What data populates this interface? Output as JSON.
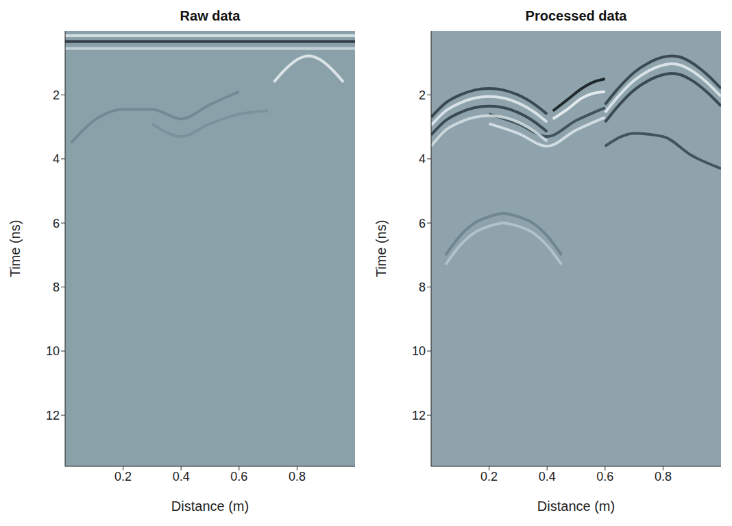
{
  "chart_data": [
    {
      "type": "line",
      "title": "Raw data",
      "x_label": "Distance (m)",
      "y_label": "Time (ns)",
      "xlim": [
        0,
        1
      ],
      "xticks": [
        0.2,
        0.4,
        0.6,
        0.8
      ],
      "ylim": [
        0,
        13.6
      ],
      "yticks": [
        2,
        4,
        6,
        8,
        10,
        12
      ],
      "color": "#8ba1aa",
      "series": [
        {
          "color": "#dfe9ec",
          "x": [
            0,
            1
          ],
          "values": [
            0.15,
            0.15
          ]
        },
        {
          "color": "#c9d8dc",
          "x": [
            0,
            1
          ],
          "values": [
            0.55,
            0.55
          ]
        },
        {
          "color": "#1f2b30",
          "x": [
            0,
            1
          ],
          "values": [
            0.33,
            0.33
          ]
        },
        {
          "color": "#e8f0f2",
          "x": [
            0.72,
            0.76,
            0.8,
            0.84,
            0.88,
            0.92,
            0.96
          ],
          "values": [
            1.6,
            1.2,
            0.9,
            0.78,
            0.9,
            1.2,
            1.6
          ]
        },
        {
          "color": "#6f8691",
          "x": [
            0.02,
            0.1,
            0.2,
            0.3,
            0.4,
            0.5,
            0.6
          ],
          "values": [
            3.5,
            2.8,
            2.45,
            2.45,
            2.75,
            2.3,
            1.9
          ]
        },
        {
          "color": "#75909a",
          "x": [
            0.3,
            0.4,
            0.5,
            0.6,
            0.7
          ],
          "values": [
            2.9,
            3.3,
            2.9,
            2.6,
            2.5
          ]
        }
      ]
    },
    {
      "type": "line",
      "title": "Processed data",
      "x_label": "Distance (m)",
      "y_label": "Time (ns)",
      "xlim": [
        0,
        1
      ],
      "xticks": [
        0.2,
        0.4,
        0.6,
        0.8
      ],
      "ylim": [
        0,
        13.6
      ],
      "yticks": [
        2,
        4,
        6,
        8,
        10,
        12
      ],
      "color": "#8ea3ab",
      "series": [
        {
          "color": "#6a818b",
          "x": [
            0.05,
            0.1,
            0.15,
            0.2,
            0.25,
            0.3,
            0.35,
            0.4,
            0.45
          ],
          "values": [
            7.0,
            6.4,
            6.0,
            5.8,
            5.7,
            5.8,
            6.0,
            6.4,
            7.0
          ]
        },
        {
          "color": "#b7c8cd",
          "x": [
            0.05,
            0.1,
            0.15,
            0.2,
            0.25,
            0.3,
            0.35,
            0.4,
            0.45
          ],
          "values": [
            7.3,
            6.7,
            6.3,
            6.1,
            6.0,
            6.1,
            6.3,
            6.7,
            7.3
          ]
        },
        {
          "color": "#34464d",
          "x": [
            0.6,
            0.7,
            0.8,
            0.9,
            1.0
          ],
          "values": [
            3.6,
            3.2,
            3.3,
            3.9,
            4.3
          ]
        },
        {
          "color": "#34464d",
          "x": [
            0.2,
            0.3,
            0.4,
            0.5,
            0.6
          ],
          "values": [
            2.6,
            2.9,
            3.3,
            2.8,
            2.4
          ]
        },
        {
          "color": "#dde8eb",
          "x": [
            0.2,
            0.3,
            0.4,
            0.5,
            0.6
          ],
          "values": [
            2.9,
            3.2,
            3.6,
            3.1,
            2.7
          ]
        },
        {
          "color": "#2a3b42",
          "x": [
            0.0,
            0.05,
            0.1,
            0.15,
            0.2,
            0.25,
            0.3,
            0.35,
            0.4
          ],
          "values": [
            2.7,
            2.25,
            2.0,
            1.85,
            1.8,
            1.85,
            2.0,
            2.25,
            2.6
          ]
        },
        {
          "color": "#e6eff1",
          "x": [
            0.0,
            0.05,
            0.1,
            0.15,
            0.2,
            0.25,
            0.3,
            0.35,
            0.4
          ],
          "values": [
            2.95,
            2.5,
            2.25,
            2.1,
            2.05,
            2.1,
            2.25,
            2.5,
            2.85
          ]
        },
        {
          "color": "#2a3b42",
          "x": [
            0.0,
            0.05,
            0.1,
            0.15,
            0.2,
            0.25,
            0.3,
            0.35,
            0.4
          ],
          "values": [
            3.25,
            2.8,
            2.55,
            2.4,
            2.35,
            2.4,
            2.55,
            2.8,
            3.15
          ]
        },
        {
          "color": "#d5e2e5",
          "x": [
            0.0,
            0.05,
            0.1,
            0.15,
            0.2,
            0.25,
            0.3,
            0.35,
            0.4
          ],
          "values": [
            3.6,
            3.1,
            2.85,
            2.7,
            2.65,
            2.7,
            2.85,
            3.1,
            3.45
          ]
        },
        {
          "color": "#0e1418",
          "x": [
            0.42,
            0.47,
            0.52,
            0.56,
            0.6
          ],
          "values": [
            2.5,
            2.15,
            1.8,
            1.6,
            1.5
          ]
        },
        {
          "color": "#f2f7f8",
          "x": [
            0.42,
            0.47,
            0.52,
            0.56,
            0.6
          ],
          "values": [
            2.75,
            2.45,
            2.1,
            1.95,
            1.9
          ]
        },
        {
          "color": "#2a3b42",
          "x": [
            0.6,
            0.65,
            0.7,
            0.75,
            0.8,
            0.83,
            0.86,
            0.9,
            0.95,
            1.0
          ],
          "values": [
            2.3,
            1.75,
            1.3,
            1.0,
            0.82,
            0.78,
            0.82,
            1.0,
            1.35,
            1.8
          ]
        },
        {
          "color": "#e6eff1",
          "x": [
            0.6,
            0.65,
            0.7,
            0.75,
            0.8,
            0.83,
            0.86,
            0.9,
            0.95,
            1.0
          ],
          "values": [
            2.55,
            2.0,
            1.55,
            1.25,
            1.07,
            1.03,
            1.07,
            1.25,
            1.6,
            2.05
          ]
        },
        {
          "color": "#2a3b42",
          "x": [
            0.6,
            0.65,
            0.7,
            0.75,
            0.8,
            0.83,
            0.86,
            0.9,
            0.95,
            1.0
          ],
          "values": [
            2.85,
            2.3,
            1.85,
            1.55,
            1.37,
            1.33,
            1.37,
            1.55,
            1.9,
            2.35
          ]
        }
      ]
    }
  ]
}
